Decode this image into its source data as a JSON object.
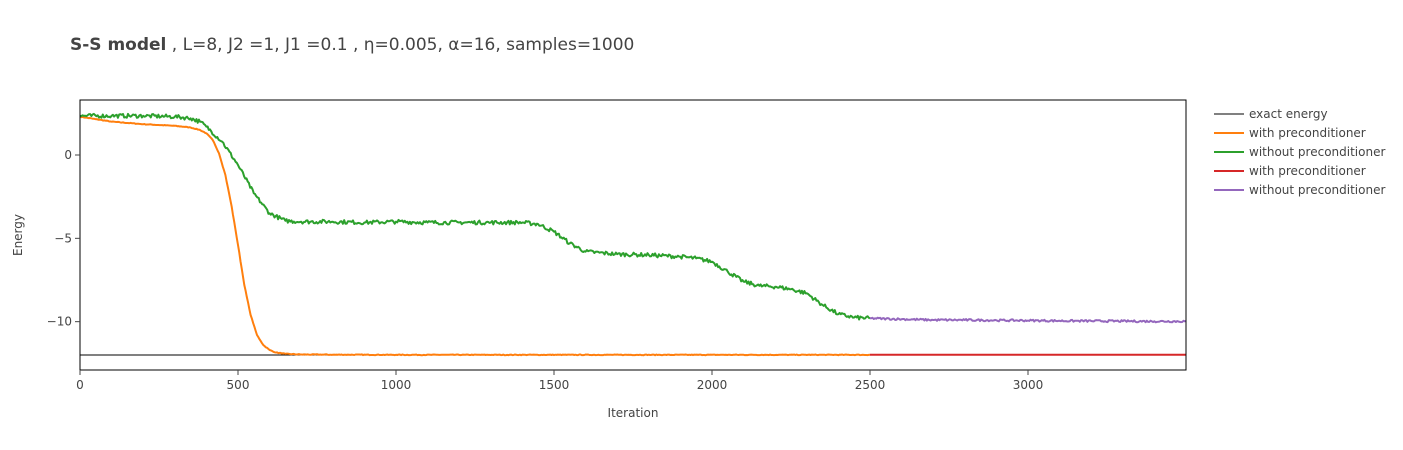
{
  "title": {
    "bold": "S-S model",
    "rest": " , L=8, J2 =1, J1 =0.1 , η=0.005, α=16, samples=1000"
  },
  "chart_data": {
    "type": "line",
    "xlabel": "Iteration",
    "ylabel": "Energy",
    "xlim": [
      0,
      3500
    ],
    "ylim": [
      -12.9,
      3.3
    ],
    "xticks": [
      0,
      500,
      1000,
      1500,
      2000,
      2500,
      3000
    ],
    "xtick_labels": [
      "0",
      "500",
      "1000",
      "1500",
      "2000",
      "2500",
      "3000"
    ],
    "yticks": [
      0,
      -5,
      -10
    ],
    "ytick_labels": [
      "0",
      "−5",
      "−10"
    ],
    "grid": false,
    "legend_position": "right",
    "series": [
      {
        "name": "exact energy",
        "color": "#000000",
        "x": [
          0,
          3500
        ],
        "y": [
          -12.0,
          -12.0
        ]
      },
      {
        "name": "with preconditioner",
        "color": "#ff7f0e",
        "x": [
          0,
          50,
          100,
          200,
          300,
          350,
          380,
          400,
          420,
          440,
          460,
          480,
          500,
          520,
          540,
          560,
          580,
          600,
          620,
          650,
          700,
          800,
          1000,
          2000,
          2500
        ],
        "y": [
          2.3,
          2.15,
          2.0,
          1.85,
          1.75,
          1.65,
          1.5,
          1.3,
          0.9,
          0.1,
          -1.2,
          -3.1,
          -5.4,
          -7.8,
          -9.6,
          -10.8,
          -11.4,
          -11.7,
          -11.85,
          -11.93,
          -11.97,
          -11.98,
          -11.99,
          -11.99,
          -11.99
        ]
      },
      {
        "name": "without preconditioner",
        "color": "#2ca02c",
        "x": [
          0,
          100,
          200,
          300,
          350,
          380,
          400,
          450,
          500,
          550,
          600,
          650,
          700,
          800,
          900,
          1000,
          1100,
          1200,
          1300,
          1400,
          1450,
          1500,
          1550,
          1600,
          1700,
          1800,
          1900,
          1950,
          2000,
          2050,
          2100,
          2150,
          2200,
          2250,
          2300,
          2350,
          2400,
          2450,
          2500
        ],
        "y": [
          2.35,
          2.35,
          2.35,
          2.3,
          2.2,
          2.0,
          1.7,
          0.8,
          -0.6,
          -2.3,
          -3.5,
          -3.95,
          -4.0,
          -4.0,
          -4.05,
          -4.0,
          -4.05,
          -4.05,
          -4.05,
          -4.05,
          -4.15,
          -4.6,
          -5.3,
          -5.8,
          -5.95,
          -6.0,
          -6.1,
          -6.2,
          -6.4,
          -7.0,
          -7.6,
          -7.85,
          -7.9,
          -8.05,
          -8.3,
          -9.0,
          -9.55,
          -9.75,
          -9.8
        ]
      },
      {
        "name": "with preconditioner",
        "color": "#d62728",
        "x": [
          2500,
          3500
        ],
        "y": [
          -11.99,
          -11.99
        ]
      },
      {
        "name": "without preconditioner",
        "color": "#9467bd",
        "x": [
          2500,
          2600,
          2700,
          2800,
          2900,
          3000,
          3100,
          3200,
          3300,
          3400,
          3500
        ],
        "y": [
          -9.8,
          -9.85,
          -9.9,
          -9.9,
          -9.92,
          -9.93,
          -9.95,
          -9.96,
          -9.97,
          -9.98,
          -9.98
        ]
      }
    ]
  }
}
